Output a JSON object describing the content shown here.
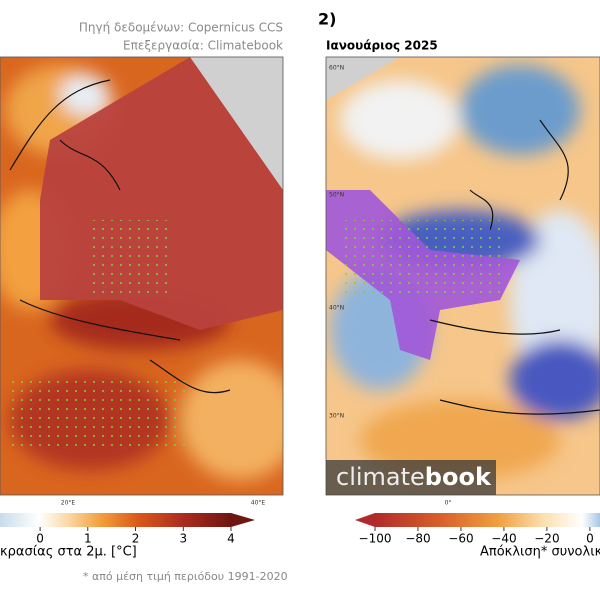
{
  "header": {
    "source": "Πηγή δεδομένων: Copernicus CCS",
    "processing": "Επεξεργασία: Climatebook",
    "panel": "2)",
    "subtitle": "Ιανουάριος 2025"
  },
  "left_map": {
    "lon_labels": [
      "20°E",
      "40°E"
    ]
  },
  "right_map": {
    "lat_labels": [
      "60°N",
      "50°N",
      "40°N",
      "30°N"
    ],
    "lon_labels": [
      "0°"
    ]
  },
  "logo": {
    "light": "climate",
    "bold": "book"
  },
  "cbar_left": {
    "label": "κρασίας στα 2μ. [°C]",
    "range": [
      -0.84,
      4
    ],
    "ticks": [
      0,
      1,
      2,
      3,
      4
    ]
  },
  "cbar_right": {
    "label": "Απόκλιση* συνολικ",
    "range": [
      -100,
      4.7
    ],
    "ticks": [
      {
        "value": -100,
        "label": "−100"
      },
      {
        "value": -80,
        "label": "−80"
      },
      {
        "value": -60,
        "label": "−60"
      },
      {
        "value": -40,
        "label": "−40"
      },
      {
        "value": -20,
        "label": "−20"
      },
      0
    ]
  },
  "footnote": "* από μέση τιμή περιόδου 1991-2020"
}
